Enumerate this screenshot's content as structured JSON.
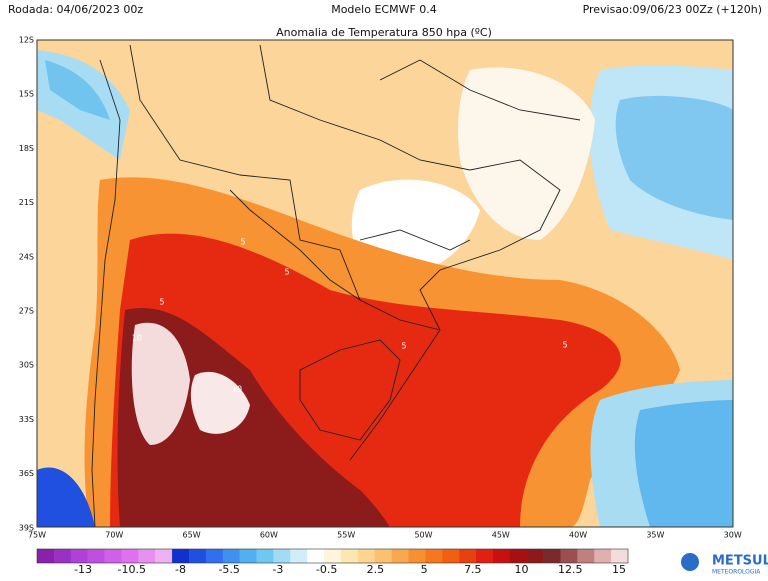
{
  "header": {
    "run": "Rodada: 04/06/2023 00z",
    "model": "Modelo ECMWF 0.4",
    "forecast": "Previsao:09/06/23 00Zz (+120h)"
  },
  "title": "Anomalia de Temperatura 850 hpa (ºC)",
  "lat_labels": [
    "12S",
    "15S",
    "18S",
    "21S",
    "24S",
    "27S",
    "30S",
    "33S",
    "36S",
    "39S"
  ],
  "lon_labels": [
    "75W",
    "70W",
    "65W",
    "60W",
    "55W",
    "50W",
    "45W",
    "40W",
    "35W",
    "30W"
  ],
  "colorbar_labels": [
    "-13",
    "-10.5",
    "-8",
    "-5.5",
    "-3",
    "-0.5",
    "2.5",
    "5",
    "7.5",
    "10",
    "12.5",
    "15"
  ],
  "contour_labels": [
    "5",
    "5",
    "5",
    "5",
    "5",
    "10",
    "10"
  ],
  "logo": {
    "name": "METSUL",
    "sub": "METEOROLOGIA"
  }
}
